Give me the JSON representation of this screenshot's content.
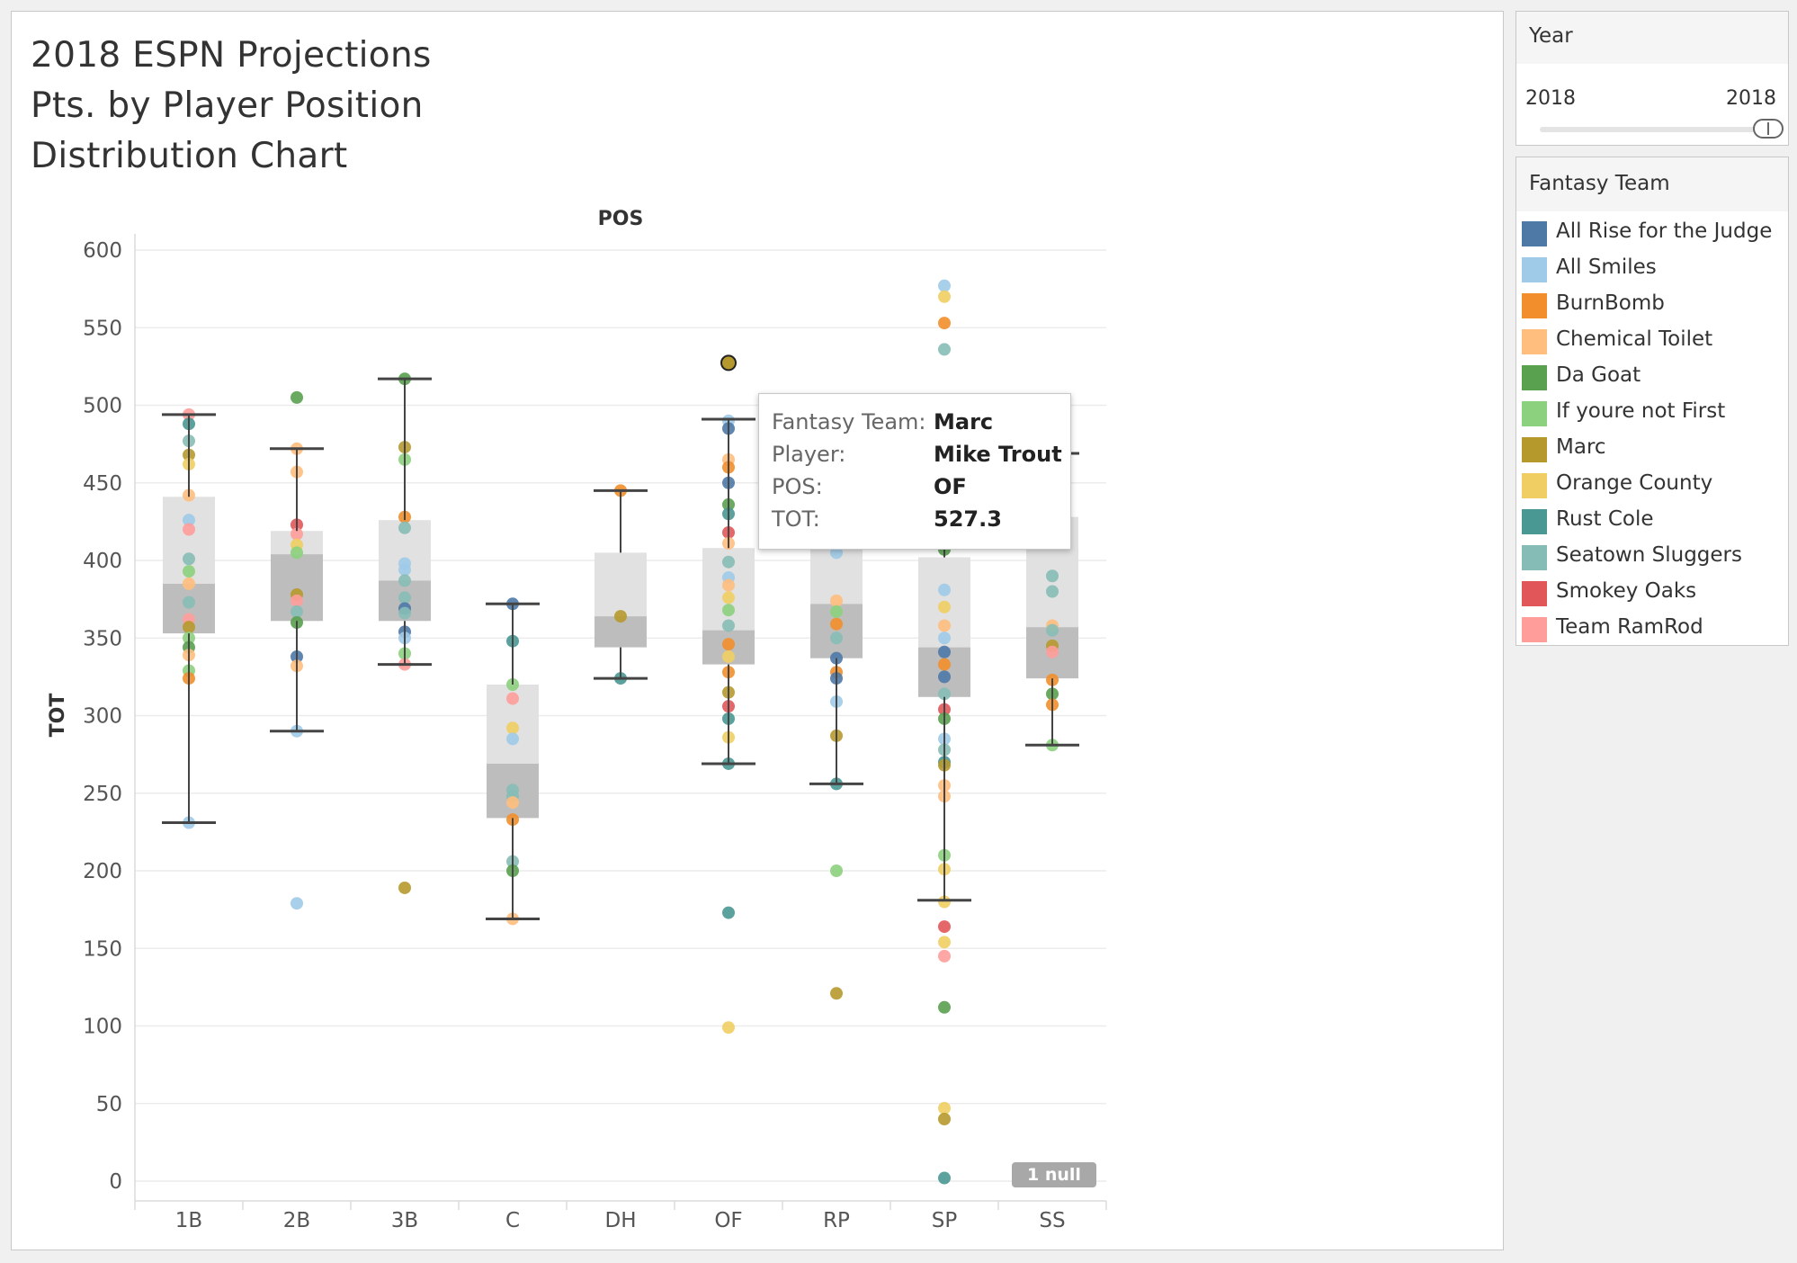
{
  "title": {
    "line1": "2018 ESPN Projections",
    "line2": "Pts. by Player Position",
    "line3": "Distribution Chart"
  },
  "chart_data": {
    "type": "box-scatter",
    "column_header": "POS",
    "ylabel": "TOT",
    "ylim": [
      0,
      600
    ],
    "yticks": [
      0,
      50,
      100,
      150,
      200,
      250,
      300,
      350,
      400,
      450,
      500,
      550,
      600
    ],
    "grid": true,
    "categories": [
      "1B",
      "2B",
      "3B",
      "C",
      "DH",
      "OF",
      "RP",
      "SP",
      "SS"
    ],
    "boxes": [
      {
        "category": "1B",
        "whisker_low": 231,
        "q1": 353,
        "median": 385,
        "q3": 441,
        "whisker_high": 494
      },
      {
        "category": "2B",
        "whisker_low": 290,
        "q1": 361,
        "median": 404,
        "q3": 419,
        "whisker_high": 472
      },
      {
        "category": "3B",
        "whisker_low": 333,
        "q1": 361,
        "median": 387,
        "q3": 426,
        "whisker_high": 517
      },
      {
        "category": "C",
        "whisker_low": 169,
        "q1": 234,
        "median": 269,
        "q3": 320,
        "whisker_high": 372
      },
      {
        "category": "DH",
        "whisker_low": 324,
        "q1": 344,
        "median": 364,
        "q3": 405,
        "whisker_high": 445
      },
      {
        "category": "OF",
        "whisker_low": 269,
        "q1": 333,
        "median": 355,
        "q3": 408,
        "whisker_high": 491
      },
      {
        "category": "RP",
        "whisker_low": 256,
        "q1": 337,
        "median": 372,
        "q3": 413,
        "whisker_high": 482
      },
      {
        "category": "SP",
        "whisker_low": 181,
        "q1": 312,
        "median": 344,
        "q3": 402,
        "whisker_high": 475
      },
      {
        "category": "SS",
        "whisker_low": 281,
        "q1": 324,
        "median": 357,
        "q3": 428,
        "whisker_high": 469
      }
    ],
    "points": [
      {
        "category": "1B",
        "team": "Team RamRod",
        "value": 494
      },
      {
        "category": "1B",
        "team": "Rust Cole",
        "value": 488
      },
      {
        "category": "1B",
        "team": "Seatown Sluggers",
        "value": 477
      },
      {
        "category": "1B",
        "team": "Marc",
        "value": 468
      },
      {
        "category": "1B",
        "team": "Orange County",
        "value": 462
      },
      {
        "category": "1B",
        "team": "Chemical Toilet",
        "value": 442
      },
      {
        "category": "1B",
        "team": "All Smiles",
        "value": 426
      },
      {
        "category": "1B",
        "team": "Team RamRod",
        "value": 420
      },
      {
        "category": "1B",
        "team": "Seatown Sluggers",
        "value": 401
      },
      {
        "category": "1B",
        "team": "If youre not First",
        "value": 393
      },
      {
        "category": "1B",
        "team": "Chemical Toilet",
        "value": 385
      },
      {
        "category": "1B",
        "team": "Seatown Sluggers",
        "value": 373
      },
      {
        "category": "1B",
        "team": "Team RamRod",
        "value": 362
      },
      {
        "category": "1B",
        "team": "Marc",
        "value": 357
      },
      {
        "category": "1B",
        "team": "If youre not First",
        "value": 350
      },
      {
        "category": "1B",
        "team": "Da Goat",
        "value": 344
      },
      {
        "category": "1B",
        "team": "Chemical Toilet",
        "value": 339
      },
      {
        "category": "1B",
        "team": "If youre not First",
        "value": 329
      },
      {
        "category": "1B",
        "team": "BurnBomb",
        "value": 324
      },
      {
        "category": "1B",
        "team": "All Smiles",
        "value": 231
      },
      {
        "category": "2B",
        "team": "Da Goat",
        "value": 505
      },
      {
        "category": "2B",
        "team": "Chemical Toilet",
        "value": 472
      },
      {
        "category": "2B",
        "team": "Chemical Toilet",
        "value": 457
      },
      {
        "category": "2B",
        "team": "Smokey Oaks",
        "value": 423
      },
      {
        "category": "2B",
        "team": "Team RamRod",
        "value": 417
      },
      {
        "category": "2B",
        "team": "Orange County",
        "value": 410
      },
      {
        "category": "2B",
        "team": "If youre not First",
        "value": 405
      },
      {
        "category": "2B",
        "team": "Marc",
        "value": 378
      },
      {
        "category": "2B",
        "team": "Team RamRod",
        "value": 374
      },
      {
        "category": "2B",
        "team": "Seatown Sluggers",
        "value": 367
      },
      {
        "category": "2B",
        "team": "Da Goat",
        "value": 360
      },
      {
        "category": "2B",
        "team": "All Rise for the Judge",
        "value": 338
      },
      {
        "category": "2B",
        "team": "Chemical Toilet",
        "value": 332
      },
      {
        "category": "2B",
        "team": "All Smiles",
        "value": 290
      },
      {
        "category": "2B",
        "team": "All Smiles",
        "value": 179
      },
      {
        "category": "3B",
        "team": "Da Goat",
        "value": 517
      },
      {
        "category": "3B",
        "team": "Marc",
        "value": 473
      },
      {
        "category": "3B",
        "team": "If youre not First",
        "value": 465
      },
      {
        "category": "3B",
        "team": "BurnBomb",
        "value": 428
      },
      {
        "category": "3B",
        "team": "Seatown Sluggers",
        "value": 421
      },
      {
        "category": "3B",
        "team": "All Smiles",
        "value": 398
      },
      {
        "category": "3B",
        "team": "All Smiles",
        "value": 394
      },
      {
        "category": "3B",
        "team": "Seatown Sluggers",
        "value": 387
      },
      {
        "category": "3B",
        "team": "Seatown Sluggers",
        "value": 376
      },
      {
        "category": "3B",
        "team": "All Rise for the Judge",
        "value": 369
      },
      {
        "category": "3B",
        "team": "Seatown Sluggers",
        "value": 366
      },
      {
        "category": "3B",
        "team": "All Rise for the Judge",
        "value": 354
      },
      {
        "category": "3B",
        "team": "All Smiles",
        "value": 350
      },
      {
        "category": "3B",
        "team": "If youre not First",
        "value": 340
      },
      {
        "category": "3B",
        "team": "Team RamRod",
        "value": 333
      },
      {
        "category": "3B",
        "team": "Marc",
        "value": 189
      },
      {
        "category": "C",
        "team": "All Rise for the Judge",
        "value": 372
      },
      {
        "category": "C",
        "team": "Rust Cole",
        "value": 348
      },
      {
        "category": "C",
        "team": "If youre not First",
        "value": 320
      },
      {
        "category": "C",
        "team": "Team RamRod",
        "value": 311
      },
      {
        "category": "C",
        "team": "Orange County",
        "value": 292
      },
      {
        "category": "C",
        "team": "All Smiles",
        "value": 285
      },
      {
        "category": "C",
        "team": "Seatown Sluggers",
        "value": 252
      },
      {
        "category": "C",
        "team": "Seatown Sluggers",
        "value": 248
      },
      {
        "category": "C",
        "team": "Chemical Toilet",
        "value": 244
      },
      {
        "category": "C",
        "team": "BurnBomb",
        "value": 233
      },
      {
        "category": "C",
        "team": "Seatown Sluggers",
        "value": 206
      },
      {
        "category": "C",
        "team": "Da Goat",
        "value": 200
      },
      {
        "category": "C",
        "team": "Chemical Toilet",
        "value": 169
      },
      {
        "category": "DH",
        "team": "BurnBomb",
        "value": 445
      },
      {
        "category": "DH",
        "team": "Marc",
        "value": 364
      },
      {
        "category": "DH",
        "team": "Rust Cole",
        "value": 324
      },
      {
        "category": "OF",
        "team": "Marc",
        "value": 527.3
      },
      {
        "category": "OF",
        "team": "All Smiles",
        "value": 490
      },
      {
        "category": "OF",
        "team": "All Rise for the Judge",
        "value": 485
      },
      {
        "category": "OF",
        "team": "Chemical Toilet",
        "value": 465
      },
      {
        "category": "OF",
        "team": "BurnBomb",
        "value": 460
      },
      {
        "category": "OF",
        "team": "All Rise for the Judge",
        "value": 450
      },
      {
        "category": "OF",
        "team": "Da Goat",
        "value": 436
      },
      {
        "category": "OF",
        "team": "Rust Cole",
        "value": 430
      },
      {
        "category": "OF",
        "team": "Smokey Oaks",
        "value": 418
      },
      {
        "category": "OF",
        "team": "Chemical Toilet",
        "value": 411
      },
      {
        "category": "OF",
        "team": "Seatown Sluggers",
        "value": 399
      },
      {
        "category": "OF",
        "team": "All Smiles",
        "value": 389
      },
      {
        "category": "OF",
        "team": "Chemical Toilet",
        "value": 384
      },
      {
        "category": "OF",
        "team": "Orange County",
        "value": 376
      },
      {
        "category": "OF",
        "team": "If youre not First",
        "value": 368
      },
      {
        "category": "OF",
        "team": "Seatown Sluggers",
        "value": 358
      },
      {
        "category": "OF",
        "team": "BurnBomb",
        "value": 346
      },
      {
        "category": "OF",
        "team": "Orange County",
        "value": 338
      },
      {
        "category": "OF",
        "team": "BurnBomb",
        "value": 328
      },
      {
        "category": "OF",
        "team": "Marc",
        "value": 315
      },
      {
        "category": "OF",
        "team": "Smokey Oaks",
        "value": 306
      },
      {
        "category": "OF",
        "team": "Rust Cole",
        "value": 298
      },
      {
        "category": "OF",
        "team": "Orange County",
        "value": 286
      },
      {
        "category": "OF",
        "team": "Rust Cole",
        "value": 269
      },
      {
        "category": "OF",
        "team": "Rust Cole",
        "value": 173
      },
      {
        "category": "OF",
        "team": "Orange County",
        "value": 99
      },
      {
        "category": "RP",
        "team": "All Smiles",
        "value": 405
      },
      {
        "category": "RP",
        "team": "Chemical Toilet",
        "value": 374
      },
      {
        "category": "RP",
        "team": "If youre not First",
        "value": 367
      },
      {
        "category": "RP",
        "team": "BurnBomb",
        "value": 359
      },
      {
        "category": "RP",
        "team": "Seatown Sluggers",
        "value": 350
      },
      {
        "category": "RP",
        "team": "All Rise for the Judge",
        "value": 337
      },
      {
        "category": "RP",
        "team": "BurnBomb",
        "value": 328
      },
      {
        "category": "RP",
        "team": "All Rise for the Judge",
        "value": 324
      },
      {
        "category": "RP",
        "team": "All Smiles",
        "value": 309
      },
      {
        "category": "RP",
        "team": "Marc",
        "value": 287
      },
      {
        "category": "RP",
        "team": "Rust Cole",
        "value": 256
      },
      {
        "category": "RP",
        "team": "If youre not First",
        "value": 200
      },
      {
        "category": "RP",
        "team": "Marc",
        "value": 121
      },
      {
        "category": "SP",
        "team": "All Smiles",
        "value": 577
      },
      {
        "category": "SP",
        "team": "Orange County",
        "value": 570
      },
      {
        "category": "SP",
        "team": "BurnBomb",
        "value": 553
      },
      {
        "category": "SP",
        "team": "Seatown Sluggers",
        "value": 536
      },
      {
        "category": "SP",
        "team": "Da Goat",
        "value": 407
      },
      {
        "category": "SP",
        "team": "All Smiles",
        "value": 381
      },
      {
        "category": "SP",
        "team": "Orange County",
        "value": 370
      },
      {
        "category": "SP",
        "team": "Chemical Toilet",
        "value": 358
      },
      {
        "category": "SP",
        "team": "All Smiles",
        "value": 350
      },
      {
        "category": "SP",
        "team": "All Rise for the Judge",
        "value": 341
      },
      {
        "category": "SP",
        "team": "BurnBomb",
        "value": 333
      },
      {
        "category": "SP",
        "team": "All Rise for the Judge",
        "value": 325
      },
      {
        "category": "SP",
        "team": "Seatown Sluggers",
        "value": 314
      },
      {
        "category": "SP",
        "team": "Smokey Oaks",
        "value": 304
      },
      {
        "category": "SP",
        "team": "Da Goat",
        "value": 298
      },
      {
        "category": "SP",
        "team": "All Smiles",
        "value": 285
      },
      {
        "category": "SP",
        "team": "Seatown Sluggers",
        "value": 278
      },
      {
        "category": "SP",
        "team": "Rust Cole",
        "value": 270
      },
      {
        "category": "SP",
        "team": "Marc",
        "value": 268
      },
      {
        "category": "SP",
        "team": "Chemical Toilet",
        "value": 255
      },
      {
        "category": "SP",
        "team": "Chemical Toilet",
        "value": 248
      },
      {
        "category": "SP",
        "team": "If youre not First",
        "value": 210
      },
      {
        "category": "SP",
        "team": "Orange County",
        "value": 201
      },
      {
        "category": "SP",
        "team": "Orange County",
        "value": 180
      },
      {
        "category": "SP",
        "team": "Smokey Oaks",
        "value": 164
      },
      {
        "category": "SP",
        "team": "Orange County",
        "value": 154
      },
      {
        "category": "SP",
        "team": "Team RamRod",
        "value": 145
      },
      {
        "category": "SP",
        "team": "Da Goat",
        "value": 112
      },
      {
        "category": "SP",
        "team": "Orange County",
        "value": 47
      },
      {
        "category": "SP",
        "team": "Marc",
        "value": 40
      },
      {
        "category": "SP",
        "team": "Rust Cole",
        "value": 2
      },
      {
        "category": "SS",
        "team": "Seatown Sluggers",
        "value": 390
      },
      {
        "category": "SS",
        "team": "Seatown Sluggers",
        "value": 380
      },
      {
        "category": "SS",
        "team": "Chemical Toilet",
        "value": 358
      },
      {
        "category": "SS",
        "team": "Seatown Sluggers",
        "value": 355
      },
      {
        "category": "SS",
        "team": "Marc",
        "value": 345
      },
      {
        "category": "SS",
        "team": "Team RamRod",
        "value": 341
      },
      {
        "category": "SS",
        "team": "BurnBomb",
        "value": 323
      },
      {
        "category": "SS",
        "team": "Da Goat",
        "value": 314
      },
      {
        "category": "SS",
        "team": "BurnBomb",
        "value": 307
      },
      {
        "category": "SS",
        "team": "If youre not First",
        "value": 281
      }
    ],
    "highlighted_point": {
      "category": "OF",
      "team": "Marc",
      "value": 527.3
    },
    "null_badge": "1 null"
  },
  "year_filter": {
    "title": "Year",
    "min": "2018",
    "max": "2018"
  },
  "legend": {
    "title": "Fantasy Team",
    "items": [
      {
        "label": "All Rise for the Judge",
        "color": "#4e79a7"
      },
      {
        "label": "All Smiles",
        "color": "#a0cbe8"
      },
      {
        "label": "BurnBomb",
        "color": "#f28e2b"
      },
      {
        "label": "Chemical Toilet",
        "color": "#ffbe7d"
      },
      {
        "label": "Da Goat",
        "color": "#59a14f"
      },
      {
        "label": "If youre not First",
        "color": "#8cd17d"
      },
      {
        "label": "Marc",
        "color": "#b6992d"
      },
      {
        "label": "Orange County",
        "color": "#f1ce63"
      },
      {
        "label": "Rust Cole",
        "color": "#499894"
      },
      {
        "label": "Seatown Sluggers",
        "color": "#86bcb6"
      },
      {
        "label": "Smokey Oaks",
        "color": "#e15759"
      },
      {
        "label": "Team RamRod",
        "color": "#ff9d9a"
      }
    ]
  },
  "tooltip": {
    "team_key": "Fantasy Team:",
    "team_value": "Marc",
    "player_key": "Player:",
    "player_value": "Mike Trout",
    "pos_key": "POS:",
    "pos_value": "OF",
    "tot_key": "TOT:",
    "tot_value": "527.3"
  }
}
